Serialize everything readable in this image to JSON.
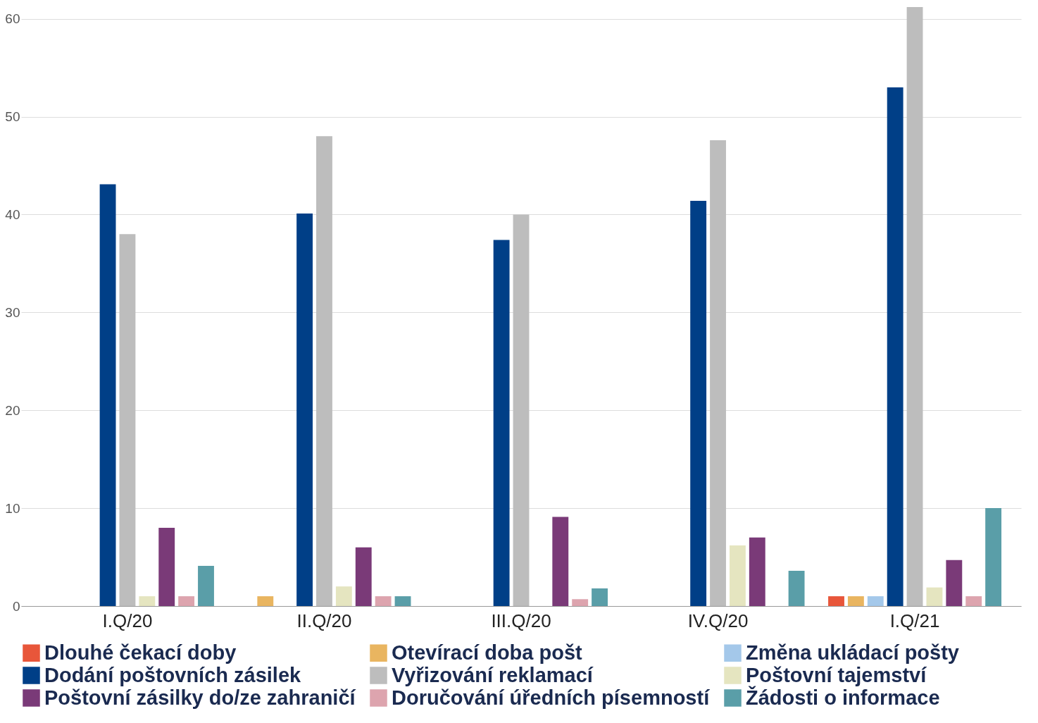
{
  "chart_data": {
    "type": "bar",
    "categories": [
      "I.Q/20",
      "II.Q/20",
      "III.Q/20",
      "IV.Q/20",
      "I.Q/21"
    ],
    "series": [
      {
        "name": "Dlouhé čekací doby",
        "color": "#e8563a",
        "values": [
          null,
          null,
          null,
          null,
          1
        ]
      },
      {
        "name": "Otevírací doba pošt",
        "color": "#e9b560",
        "values": [
          null,
          1,
          null,
          null,
          1
        ]
      },
      {
        "name": "Změna ukládací pošty",
        "color": "#a4c8ea",
        "values": [
          null,
          null,
          null,
          null,
          1
        ]
      },
      {
        "name": "Dodání poštovních zásilek",
        "color": "#003f87",
        "values": [
          43.1,
          40.1,
          37.4,
          41.4,
          53
        ]
      },
      {
        "name": "Vyřizování reklamací",
        "color": "#bdbdbd",
        "values": [
          38,
          48,
          40,
          47.6,
          61.2
        ]
      },
      {
        "name": "Poštovní tajemství",
        "color": "#e5e5c0",
        "values": [
          1,
          2,
          null,
          6.2,
          1.9
        ]
      },
      {
        "name": "Poštovní zásilky do/ze zahraničí",
        "color": "#7a3a78",
        "values": [
          8,
          6,
          9.1,
          7,
          4.7
        ]
      },
      {
        "name": "Doručování úředních písemností",
        "color": "#dda4ae",
        "values": [
          1,
          1,
          0.7,
          null,
          1
        ]
      },
      {
        "name": "Žádosti o informace",
        "color": "#5a9ea8",
        "values": [
          4.1,
          1,
          1.8,
          3.6,
          10
        ]
      }
    ],
    "ylim": [
      0,
      61.2
    ],
    "yticks": [
      0,
      10,
      20,
      30,
      40,
      50,
      60
    ],
    "grid": "y",
    "legend": "bottom"
  }
}
